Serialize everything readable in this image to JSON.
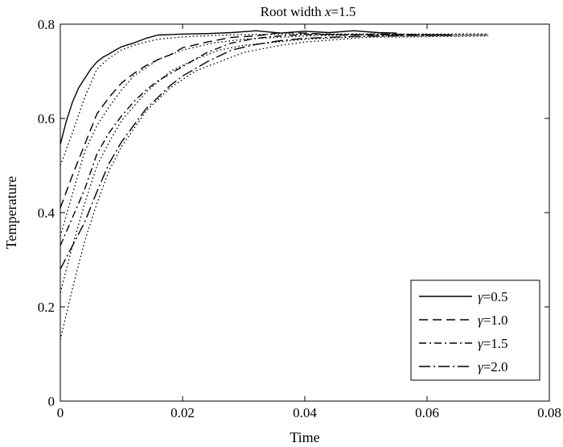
{
  "chart_data": {
    "type": "line",
    "title": "Root width x=1.5",
    "title_parts": {
      "prefix": "Root width ",
      "var": "x",
      "suffix": "=1.5"
    },
    "xlabel": "Time",
    "ylabel": "Temperature",
    "xlim": [
      0,
      0.08
    ],
    "ylim": [
      0,
      0.8
    ],
    "xticks": [
      0,
      0.02,
      0.04,
      0.06,
      0.08
    ],
    "xtick_labels": [
      "0",
      "0.02",
      "0.04",
      "0.06",
      "0.08"
    ],
    "yticks": [
      0,
      0.2,
      0.4,
      0.6,
      0.8
    ],
    "ytick_labels": [
      "0",
      "0.2",
      "0.4",
      "0.6",
      "0.8"
    ],
    "grid": false,
    "legend_position": "bottom-right",
    "legend": [
      {
        "var": "γ",
        "value": "=0.5",
        "style": "solid"
      },
      {
        "var": "γ",
        "value": "=1.0",
        "style": "dashed"
      },
      {
        "var": "γ",
        "value": "=1.5",
        "style": "dashdot"
      },
      {
        "var": "γ",
        "value": "=2.0",
        "style": "longdashdot"
      }
    ],
    "series": [
      {
        "style": "solid",
        "x": [
          0,
          0.001,
          0.002,
          0.003,
          0.004,
          0.005,
          0.006,
          0.007,
          0.008,
          0.009,
          0.01,
          0.012,
          0.014,
          0.016,
          0.018,
          0.02,
          0.024,
          0.028,
          0.032,
          0.036,
          0.04,
          0.044,
          0.048,
          0.052,
          0.055
        ],
        "y": [
          0.545,
          0.595,
          0.635,
          0.665,
          0.685,
          0.705,
          0.72,
          0.73,
          0.737,
          0.745,
          0.752,
          0.76,
          0.77,
          0.777,
          0.778,
          0.779,
          0.78,
          0.782,
          0.786,
          0.781,
          0.785,
          0.782,
          0.786,
          0.782,
          0.781
        ]
      },
      {
        "style": "dotted",
        "x": [
          0,
          0.002,
          0.004,
          0.006,
          0.008,
          0.01,
          0.012,
          0.014,
          0.016,
          0.02,
          0.025,
          0.03,
          0.04,
          0.05,
          0.07
        ],
        "y": [
          0.5,
          0.57,
          0.645,
          0.705,
          0.728,
          0.745,
          0.755,
          0.762,
          0.768,
          0.773,
          0.776,
          0.778,
          0.779,
          0.779,
          0.779
        ]
      },
      {
        "style": "dashed",
        "x": [
          0,
          0.002,
          0.004,
          0.006,
          0.008,
          0.01,
          0.012,
          0.014,
          0.016,
          0.018,
          0.02,
          0.024,
          0.028,
          0.032,
          0.036,
          0.04,
          0.046,
          0.052,
          0.058,
          0.064
        ],
        "y": [
          0.41,
          0.48,
          0.545,
          0.61,
          0.645,
          0.675,
          0.695,
          0.712,
          0.725,
          0.735,
          0.75,
          0.762,
          0.772,
          0.775,
          0.782,
          0.781,
          0.777,
          0.779,
          0.778,
          0.777
        ]
      },
      {
        "style": "dotted",
        "x": [
          0,
          0.002,
          0.004,
          0.006,
          0.008,
          0.01,
          0.012,
          0.016,
          0.02,
          0.025,
          0.03,
          0.04,
          0.05,
          0.07
        ],
        "y": [
          0.35,
          0.44,
          0.53,
          0.585,
          0.625,
          0.66,
          0.69,
          0.725,
          0.745,
          0.76,
          0.768,
          0.775,
          0.778,
          0.778
        ]
      },
      {
        "style": "dashdot",
        "x": [
          0,
          0.002,
          0.004,
          0.006,
          0.008,
          0.01,
          0.012,
          0.014,
          0.016,
          0.018,
          0.02,
          0.024,
          0.028,
          0.032,
          0.036,
          0.04,
          0.048,
          0.056,
          0.064
        ],
        "y": [
          0.33,
          0.39,
          0.45,
          0.525,
          0.57,
          0.605,
          0.635,
          0.66,
          0.68,
          0.695,
          0.71,
          0.74,
          0.76,
          0.77,
          0.775,
          0.778,
          0.778,
          0.777,
          0.777
        ]
      },
      {
        "style": "dotted",
        "x": [
          0,
          0.002,
          0.004,
          0.006,
          0.008,
          0.01,
          0.014,
          0.018,
          0.022,
          0.026,
          0.03,
          0.04,
          0.05,
          0.07
        ],
        "y": [
          0.23,
          0.33,
          0.42,
          0.5,
          0.55,
          0.595,
          0.655,
          0.7,
          0.725,
          0.745,
          0.755,
          0.768,
          0.774,
          0.776
        ]
      },
      {
        "style": "longdashdot",
        "x": [
          0,
          0.002,
          0.004,
          0.006,
          0.008,
          0.01,
          0.012,
          0.014,
          0.016,
          0.018,
          0.02,
          0.024,
          0.028,
          0.032,
          0.036,
          0.04,
          0.048,
          0.056,
          0.064
        ],
        "y": [
          0.28,
          0.33,
          0.38,
          0.445,
          0.505,
          0.55,
          0.585,
          0.62,
          0.645,
          0.67,
          0.69,
          0.72,
          0.745,
          0.757,
          0.765,
          0.77,
          0.774,
          0.776,
          0.777
        ]
      },
      {
        "style": "dotted",
        "x": [
          0,
          0.002,
          0.004,
          0.006,
          0.008,
          0.01,
          0.014,
          0.018,
          0.022,
          0.026,
          0.03,
          0.036,
          0.04,
          0.05,
          0.07
        ],
        "y": [
          0.13,
          0.24,
          0.34,
          0.42,
          0.49,
          0.54,
          0.615,
          0.665,
          0.7,
          0.72,
          0.74,
          0.755,
          0.762,
          0.772,
          0.775
        ]
      }
    ]
  }
}
